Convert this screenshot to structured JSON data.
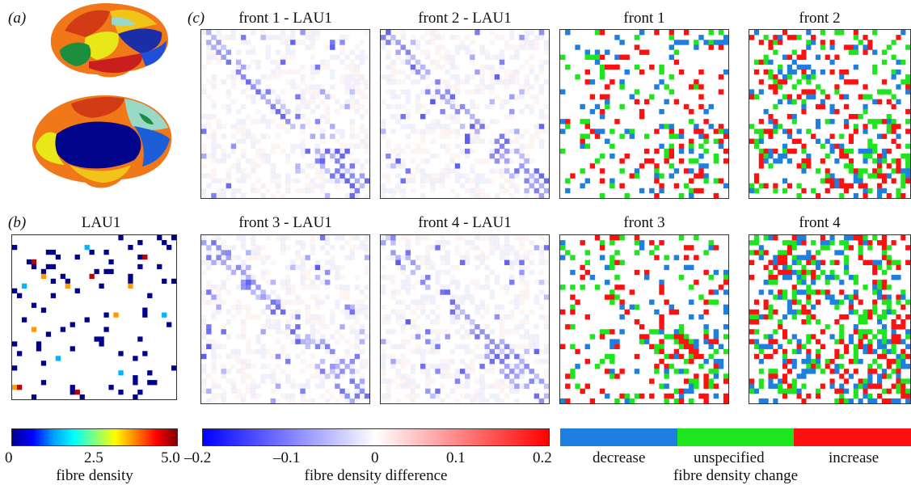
{
  "panel_labels": {
    "a": "(a)",
    "b": "(b)",
    "c": "(c)"
  },
  "titles": {
    "lau1": "LAU1",
    "f1_diff": "front 1 - LAU1",
    "f2_diff": "front 2 - LAU1",
    "f3_diff": "front 3 - LAU1",
    "f4_diff": "front 4 - LAU1",
    "f1": "front 1",
    "f2": "front 2",
    "f3": "front 3",
    "f4": "front 4"
  },
  "colorbars": {
    "density": {
      "ticks": [
        "0",
        "2.5",
        "5.0"
      ],
      "label": "fibre density"
    },
    "difference": {
      "ticks": [
        "–0.2",
        "–0.1",
        "0",
        "0.1",
        "0.2"
      ],
      "label": "fibre density difference"
    },
    "change": {
      "categories": [
        "decrease",
        "unspecified",
        "increase"
      ],
      "label": "fibre density change",
      "colors": [
        "#1f7fe0",
        "#1ee61e",
        "#ff1010"
      ]
    }
  },
  "colors": {
    "blue": "#1f7fe0",
    "green": "#1ee61e",
    "red": "#ff1010",
    "navy": "#00008c"
  }
}
